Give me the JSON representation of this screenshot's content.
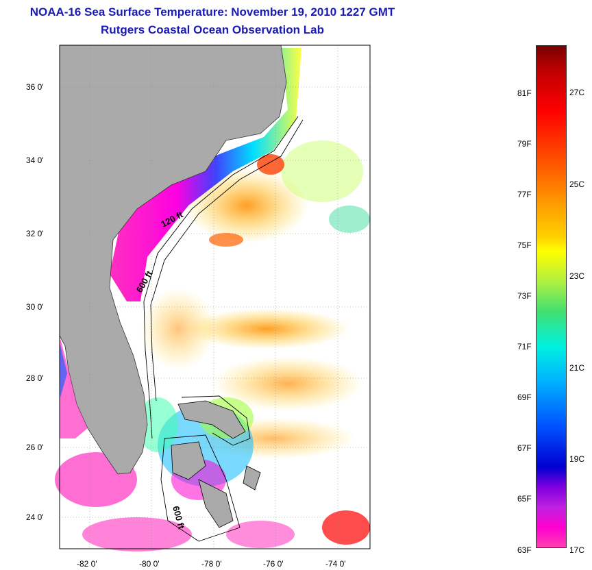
{
  "title_line1": "NOAA-16 Sea Surface Temperature:  November 19, 2010 1227 GMT",
  "title_line2": "Rutgers Coastal Ocean Observation Lab",
  "lat_ticks": [
    "24 0'",
    "26 0'",
    "28 0'",
    "30 0'",
    "32 0'",
    "34 0'",
    "36 0'"
  ],
  "lon_ticks": [
    "-82 0'",
    "-80 0'",
    "-78 0'",
    "-76 0'",
    "-74 0'"
  ],
  "contour_labels": {
    "shelf_120": "120 ft",
    "shelf_600": "600 ft",
    "bahamas_600": "600 ft"
  },
  "colorbar": {
    "fahrenheit": [
      "81F",
      "79F",
      "77F",
      "75F",
      "73F",
      "71F",
      "69F",
      "67F",
      "65F",
      "63F"
    ],
    "celsius": [
      "27C",
      "25C",
      "23C",
      "21C",
      "19C",
      "17C"
    ]
  },
  "colors": {
    "land": "#aaaaaa",
    "title": "#1a1ab4",
    "cloud": "#ffffff"
  }
}
